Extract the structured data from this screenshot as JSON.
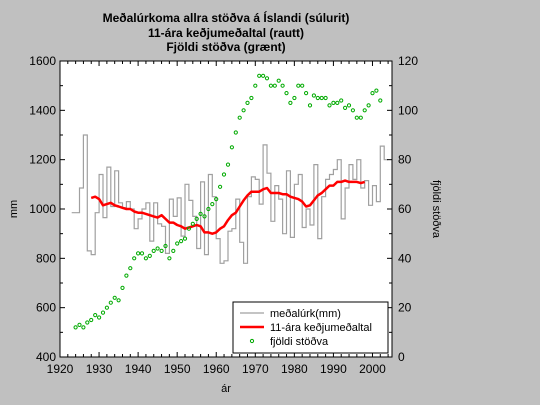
{
  "chart_data": {
    "type": "line",
    "title_lines": [
      "Meðalúrkoma allra stöðva á Íslandi (súlurit)",
      "11-ára keðjumeðaltal (rautt)",
      "Fjöldi stöðva (grænt)"
    ],
    "xlabel": "ár",
    "ylabel_left": "mm",
    "ylabel_right": "fjöldi stöðva",
    "xlim": [
      1920,
      2005
    ],
    "ylim_left": [
      400,
      1600
    ],
    "ylim_right": [
      0,
      120
    ],
    "xticks": [
      "1920",
      "1930",
      "1940",
      "1950",
      "1960",
      "1970",
      "1980",
      "1990",
      "2000"
    ],
    "yticks_left": [
      "400",
      "600",
      "800",
      "1000",
      "1200",
      "1400",
      "1600"
    ],
    "yticks_right": [
      "0",
      "20",
      "40",
      "60",
      "80",
      "100",
      "120"
    ],
    "grid": false,
    "legend_position": "bottom-right",
    "series": [
      {
        "name": "meðalúrk(mm)",
        "axis": "left",
        "style": "step",
        "color": "#a0a0a0",
        "x": [
          1923,
          1924,
          1925,
          1926,
          1927,
          1928,
          1929,
          1930,
          1931,
          1932,
          1933,
          1934,
          1935,
          1936,
          1937,
          1938,
          1939,
          1940,
          1941,
          1942,
          1943,
          1944,
          1945,
          1946,
          1947,
          1948,
          1949,
          1950,
          1951,
          1952,
          1953,
          1954,
          1955,
          1956,
          1957,
          1958,
          1959,
          1960,
          1961,
          1962,
          1963,
          1964,
          1965,
          1966,
          1967,
          1968,
          1969,
          1970,
          1971,
          1972,
          1973,
          1974,
          1975,
          1976,
          1977,
          1978,
          1979,
          1980,
          1981,
          1982,
          1983,
          1984,
          1985,
          1986,
          1987,
          1988,
          1989,
          1990,
          1991,
          1992,
          1993,
          1994,
          1995,
          1996,
          1997,
          1998,
          1999,
          2000,
          2001,
          2002,
          2003
        ],
        "values": [
          985,
          985,
          1085,
          1300,
          830,
          815,
          985,
          1140,
          965,
          1170,
          1010,
          1155,
          1025,
          1005,
          1030,
          1000,
          920,
          960,
          1000,
          1025,
          870,
          1025,
          940,
          930,
          820,
          1040,
          970,
          1045,
          890,
          1100,
          1035,
          970,
          840,
          1110,
          815,
          1140,
          1050,
          880,
          780,
          790,
          910,
          920,
          1040,
          865,
          780,
          1050,
          1130,
          1120,
          1020,
          1260,
          1145,
          950,
          1095,
          1040,
          900,
          1155,
          885,
          1100,
          1140,
          925,
          1000,
          935,
          1180,
          880,
          1050,
          1120,
          1140,
          1160,
          1200,
          960,
          1085,
          1180,
          1120,
          1200,
          1085,
          1115,
          1015,
          1095,
          1030,
          1255,
          1200
        ]
      },
      {
        "name": "11-ára keðjumeðaltal",
        "axis": "left",
        "style": "line",
        "color": "#ff0000",
        "x": [
          1928,
          1929,
          1930,
          1931,
          1932,
          1933,
          1934,
          1935,
          1936,
          1937,
          1938,
          1939,
          1940,
          1941,
          1942,
          1943,
          1944,
          1945,
          1946,
          1947,
          1948,
          1949,
          1950,
          1951,
          1952,
          1953,
          1954,
          1955,
          1956,
          1957,
          1958,
          1959,
          1960,
          1961,
          1962,
          1963,
          1964,
          1965,
          1966,
          1967,
          1968,
          1969,
          1970,
          1971,
          1972,
          1973,
          1974,
          1975,
          1976,
          1977,
          1978,
          1979,
          1980,
          1981,
          1982,
          1983,
          1984,
          1985,
          1986,
          1987,
          1988,
          1989,
          1990,
          1991,
          1992,
          1993,
          1994,
          1995,
          1996,
          1997,
          1998
        ],
        "values": [
          1045,
          1050,
          1040,
          1015,
          1020,
          1025,
          1015,
          1010,
          1005,
          1000,
          1000,
          990,
          985,
          985,
          980,
          975,
          970,
          965,
          975,
          960,
          945,
          945,
          935,
          930,
          920,
          925,
          930,
          935,
          930,
          905,
          905,
          900,
          905,
          920,
          930,
          955,
          975,
          985,
          1010,
          1035,
          1055,
          1070,
          1070,
          1070,
          1080,
          1085,
          1065,
          1065,
          1065,
          1060,
          1060,
          1050,
          1045,
          1040,
          1030,
          1010,
          1015,
          1035,
          1055,
          1065,
          1080,
          1095,
          1095,
          1110,
          1110,
          1115,
          1110,
          1110,
          1110,
          1105,
          1110
        ]
      },
      {
        "name": "fjöldi stöðva",
        "axis": "right",
        "style": "scatter",
        "color": "#00aa00",
        "x": [
          1924,
          1925,
          1926,
          1927,
          1928,
          1929,
          1930,
          1931,
          1932,
          1933,
          1934,
          1935,
          1936,
          1937,
          1938,
          1939,
          1940,
          1941,
          1942,
          1943,
          1944,
          1945,
          1946,
          1947,
          1948,
          1949,
          1950,
          1951,
          1952,
          1953,
          1954,
          1955,
          1956,
          1957,
          1958,
          1959,
          1960,
          1961,
          1962,
          1963,
          1964,
          1965,
          1966,
          1967,
          1968,
          1969,
          1970,
          1971,
          1972,
          1973,
          1974,
          1975,
          1976,
          1977,
          1978,
          1979,
          1980,
          1981,
          1982,
          1983,
          1984,
          1985,
          1986,
          1987,
          1988,
          1989,
          1990,
          1991,
          1992,
          1993,
          1994,
          1995,
          1996,
          1997,
          1998,
          1999,
          2000,
          2001,
          2002
        ],
        "values": [
          12,
          13,
          12,
          14,
          15,
          17,
          16,
          18,
          20,
          22,
          24,
          23,
          28,
          33,
          36,
          40,
          42,
          42,
          40,
          41,
          43,
          44,
          43,
          45,
          40,
          43,
          46,
          47,
          48,
          52,
          54,
          56,
          58,
          57,
          60,
          62,
          64,
          69,
          74,
          78,
          85,
          91,
          97,
          100,
          103,
          105,
          110,
          114,
          114,
          113,
          110,
          110,
          112,
          110,
          107,
          103,
          105,
          110,
          110,
          107,
          102,
          106,
          105,
          105,
          105,
          102,
          103,
          103,
          104,
          101,
          102,
          100,
          97,
          97,
          100,
          102,
          107,
          108,
          104
        ]
      }
    ]
  }
}
